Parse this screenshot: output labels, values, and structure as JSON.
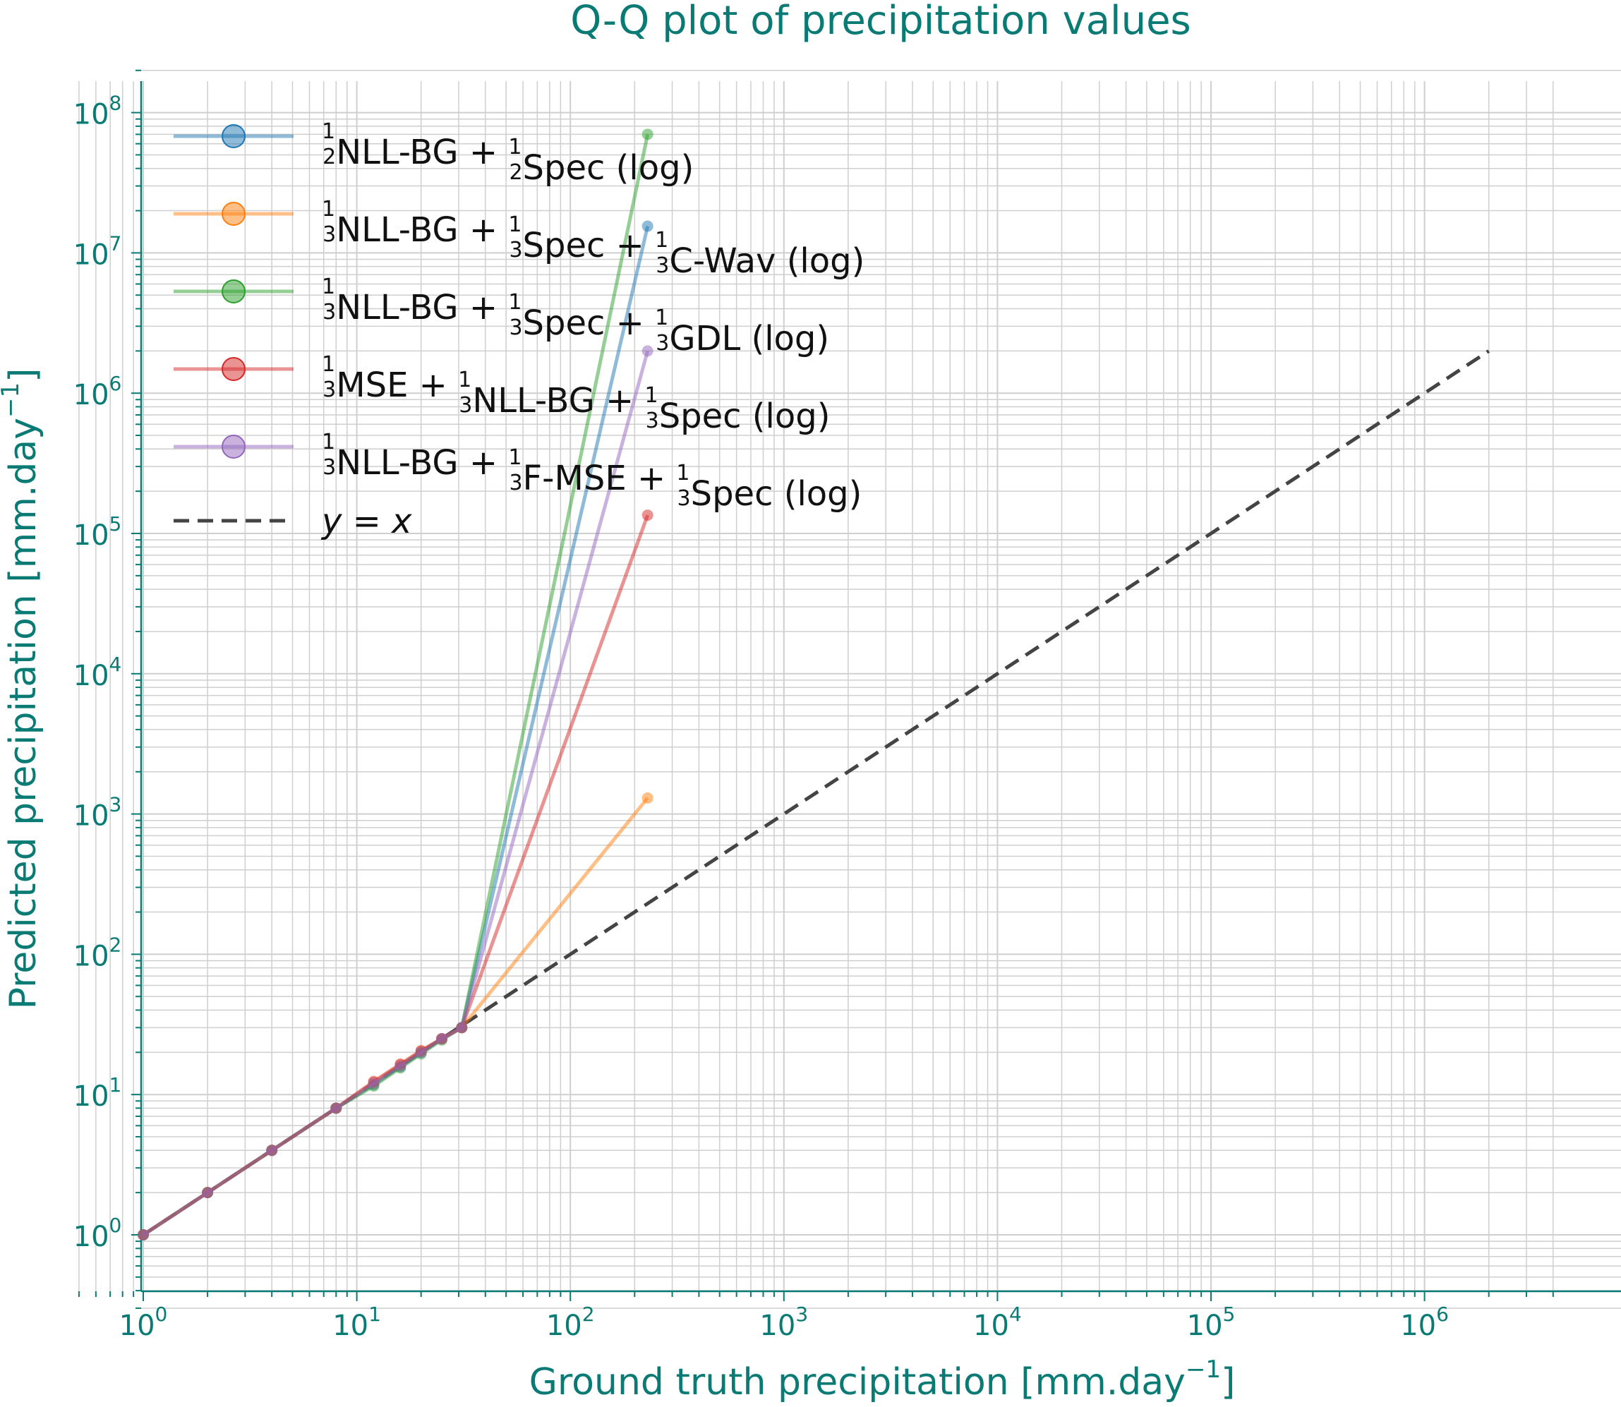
{
  "chart_data": {
    "type": "line",
    "title": "Q-Q plot of precipitation values",
    "xlabel": "Ground truth precipitation [mm.day",
    "ylabel": "Predicted precipitation [mm.day",
    "label_exponent": "−1",
    "label_close": "]",
    "xscale": "log",
    "yscale": "log",
    "xlim": [
      0.5,
      4000000
    ],
    "ylim": [
      0.25,
      250000000
    ],
    "grid": true,
    "legend_position": "upper-left",
    "tick_base": "10",
    "x_ticks": [
      {
        "mantissa": "10",
        "exp": "0",
        "value": 1
      },
      {
        "mantissa": "10",
        "exp": "1",
        "value": 10
      },
      {
        "mantissa": "10",
        "exp": "2",
        "value": 100
      },
      {
        "mantissa": "10",
        "exp": "3",
        "value": 1000
      },
      {
        "mantissa": "10",
        "exp": "4",
        "value": 10000
      },
      {
        "mantissa": "10",
        "exp": "5",
        "value": 100000
      },
      {
        "mantissa": "10",
        "exp": "6",
        "value": 1000000
      }
    ],
    "y_ticks": [
      {
        "mantissa": "10",
        "exp": "0",
        "value": 1
      },
      {
        "mantissa": "10",
        "exp": "1",
        "value": 10
      },
      {
        "mantissa": "10",
        "exp": "2",
        "value": 100
      },
      {
        "mantissa": "10",
        "exp": "3",
        "value": 1000
      },
      {
        "mantissa": "10",
        "exp": "4",
        "value": 10000
      },
      {
        "mantissa": "10",
        "exp": "5",
        "value": 100000
      },
      {
        "mantissa": "10",
        "exp": "6",
        "value": 1000000
      },
      {
        "mantissa": "10",
        "exp": "7",
        "value": 10000000
      },
      {
        "mantissa": "10",
        "exp": "8",
        "value": 100000000
      }
    ],
    "series": [
      {
        "color": "#1f77b4",
        "legend": [
          {
            "t": "frac",
            "d": "2"
          },
          {
            "t": "text",
            "v": "NLL-BG + "
          },
          {
            "t": "frac",
            "d": "2"
          },
          {
            "t": "text",
            "v": "Spec (log)"
          }
        ],
        "x": [
          1,
          2,
          4,
          8,
          12,
          16,
          20,
          25,
          31,
          230
        ],
        "y": [
          1,
          2,
          4,
          8,
          11.8,
          15.8,
          20,
          25,
          30,
          15500000
        ]
      },
      {
        "color": "#ff7f0e",
        "legend": [
          {
            "t": "frac",
            "d": "3"
          },
          {
            "t": "text",
            "v": "NLL-BG + "
          },
          {
            "t": "frac",
            "d": "3"
          },
          {
            "t": "text",
            "v": "Spec + "
          },
          {
            "t": "frac",
            "d": "3"
          },
          {
            "t": "text",
            "v": "C-Wav (log)"
          }
        ],
        "x": [
          1,
          2,
          4,
          8,
          12,
          16,
          20,
          25,
          31,
          230
        ],
        "y": [
          1,
          2,
          4,
          8,
          12.2,
          16.3,
          20.5,
          25,
          30,
          1300
        ]
      },
      {
        "color": "#2ca02c",
        "legend": [
          {
            "t": "frac",
            "d": "3"
          },
          {
            "t": "text",
            "v": "NLL-BG + "
          },
          {
            "t": "frac",
            "d": "3"
          },
          {
            "t": "text",
            "v": "Spec + "
          },
          {
            "t": "frac",
            "d": "3"
          },
          {
            "t": "text",
            "v": "GDL (log)"
          }
        ],
        "x": [
          1,
          2,
          4,
          8,
          12,
          16,
          20,
          25,
          31,
          230
        ],
        "y": [
          1,
          2,
          4,
          8,
          11.5,
          15.5,
          19.5,
          24.5,
          30,
          70000000
        ]
      },
      {
        "color": "#d62728",
        "legend": [
          {
            "t": "frac",
            "d": "3"
          },
          {
            "t": "text",
            "v": "MSE + "
          },
          {
            "t": "frac",
            "d": "3"
          },
          {
            "t": "text",
            "v": "NLL-BG + "
          },
          {
            "t": "frac",
            "d": "3"
          },
          {
            "t": "text",
            "v": "Spec (log)"
          }
        ],
        "x": [
          1,
          2,
          4,
          8,
          12,
          16,
          20,
          25,
          31,
          230
        ],
        "y": [
          1,
          2,
          4,
          8,
          12.4,
          16.5,
          20.5,
          25,
          30,
          135000
        ]
      },
      {
        "color": "#9467bd",
        "legend": [
          {
            "t": "frac",
            "d": "3"
          },
          {
            "t": "text",
            "v": "NLL-BG + "
          },
          {
            "t": "frac",
            "d": "3"
          },
          {
            "t": "text",
            "v": "F-MSE + "
          },
          {
            "t": "frac",
            "d": "3"
          },
          {
            "t": "text",
            "v": "Spec (log)"
          }
        ],
        "x": [
          1,
          2,
          4,
          8,
          12,
          16,
          20,
          25,
          31,
          230
        ],
        "y": [
          1,
          2,
          4,
          8,
          12,
          16,
          20,
          25,
          30,
          2000000
        ]
      }
    ],
    "reference_line": {
      "label": "y = x",
      "color": "#444444",
      "x": [
        1,
        2000000
      ],
      "y": [
        1,
        2000000
      ]
    }
  }
}
